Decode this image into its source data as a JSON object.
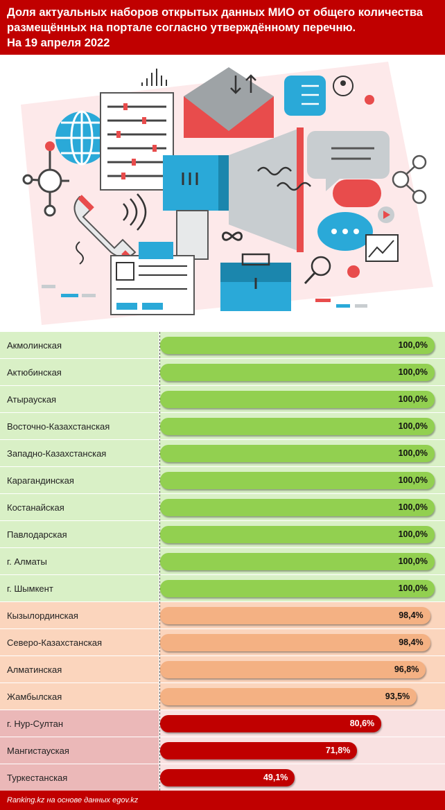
{
  "header": {
    "title": "Доля актуальных наборов открытых данных МИО от общего количества\nразмещённых на портале согласно утверждённому перечню.\nНа 19 апреля 2022"
  },
  "footer": {
    "source": "Ranking.kz на основе данных egov.kz"
  },
  "colors": {
    "header_bg": "#c00000",
    "green_bar": "#92d050",
    "green_row": "#d9f0c6",
    "orange_bar": "#f4b183",
    "orange_row": "#fbd5bd",
    "red_bar": "#c00000",
    "red_row_label": "#ebb8b8",
    "red_row_bar": "#f9e1e1"
  },
  "chart_data": {
    "type": "bar",
    "orientation": "horizontal",
    "xlim": [
      0,
      100
    ],
    "categories": [
      "Акмолинская",
      "Актюбинская",
      "Атырауская",
      "Восточно-Казахстанская",
      "Западно-Казахстанская",
      "Карагандинская",
      "Костанайская",
      "Павлодарская",
      "г. Алматы",
      "г. Шымкент",
      "Кызылординская",
      "Северо-Казахстанская",
      "Алматинская",
      "Жамбылская",
      "г. Нур-Султан",
      "Мангистауская",
      "Туркестанская"
    ],
    "values": [
      100,
      100,
      100,
      100,
      100,
      100,
      100,
      100,
      100,
      100,
      98.4,
      98.4,
      96.8,
      93.5,
      80.6,
      71.8,
      49.1
    ],
    "value_labels": [
      "100,0%",
      "100,0%",
      "100,0%",
      "100,0%",
      "100,0%",
      "100,0%",
      "100,0%",
      "100,0%",
      "100,0%",
      "100,0%",
      "98,4%",
      "98,4%",
      "96,8%",
      "93,5%",
      "80,6%",
      "71,8%",
      "49,1%"
    ],
    "groups": [
      "green",
      "green",
      "green",
      "green",
      "green",
      "green",
      "green",
      "green",
      "green",
      "green",
      "orange",
      "orange",
      "orange",
      "orange",
      "red",
      "red",
      "red"
    ]
  }
}
